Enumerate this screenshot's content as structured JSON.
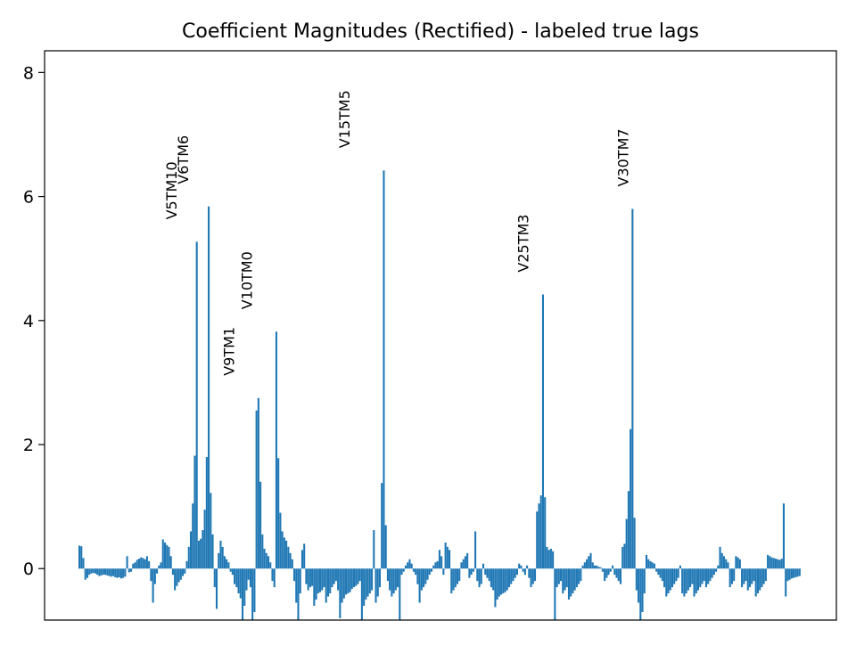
{
  "chart_data": {
    "type": "bar",
    "title": "Coefficient Magnitudes (Rectified) - labeled true lags",
    "xlabel": "",
    "ylabel": "",
    "ylim": [
      -0.83,
      8.35
    ],
    "xlim": [
      0,
      372
    ],
    "x_ticks_visible": false,
    "grid": false,
    "bar_color": "#1f77b4",
    "y_ticks": [
      {
        "value": 0,
        "label": "0"
      },
      {
        "value": 2,
        "label": "2"
      },
      {
        "value": 4,
        "label": "4"
      },
      {
        "value": 6,
        "label": "6"
      },
      {
        "value": 8,
        "label": "8"
      }
    ],
    "annotations": [
      {
        "text": "V5TM10",
        "x": 46,
        "y": 5.27
      },
      {
        "text": "V6TM6",
        "x": 52,
        "y": 5.84
      },
      {
        "text": "V9TM1",
        "x": 75,
        "y": 2.75
      },
      {
        "text": "V10TM0",
        "x": 84,
        "y": 3.82
      },
      {
        "text": "V15TM5",
        "x": 133,
        "y": 6.42
      },
      {
        "text": "V25TM3",
        "x": 223,
        "y": 4.42
      },
      {
        "text": "V30TM7",
        "x": 273,
        "y": 5.8
      }
    ],
    "values": [
      0.37,
      0.36,
      0.17,
      -0.18,
      -0.15,
      -0.1,
      -0.08,
      -0.07,
      -0.08,
      -0.1,
      -0.12,
      -0.11,
      -0.1,
      -0.1,
      -0.11,
      -0.12,
      -0.13,
      -0.12,
      -0.14,
      -0.15,
      -0.14,
      -0.16,
      -0.15,
      -0.13,
      0.2,
      -0.06,
      -0.05,
      0.08,
      0.1,
      0.14,
      0.16,
      0.18,
      0.17,
      0.15,
      0.2,
      0.12,
      -0.2,
      -0.55,
      -0.25,
      -0.08,
      0.05,
      0.1,
      0.47,
      0.42,
      0.38,
      0.35,
      0.2,
      -0.1,
      -0.35,
      -0.28,
      -0.22,
      -0.18,
      -0.12,
      -0.08,
      0.12,
      0.35,
      0.6,
      1.05,
      1.82,
      5.27,
      0.45,
      0.48,
      0.62,
      0.95,
      1.8,
      5.84,
      1.22,
      0.55,
      -0.3,
      -0.65,
      0.25,
      0.45,
      0.35,
      0.2,
      0.15,
      0.1,
      -0.05,
      -0.1,
      -0.25,
      -0.3,
      -0.4,
      -0.48,
      -0.83,
      -0.6,
      -0.35,
      -0.18,
      -0.3,
      -0.83,
      -0.7,
      2.55,
      2.75,
      1.4,
      0.55,
      0.32,
      0.25,
      0.2,
      0.1,
      -0.2,
      -0.3,
      3.82,
      1.78,
      0.9,
      0.6,
      0.5,
      0.45,
      0.35,
      0.25,
      0.15,
      -0.2,
      -0.55,
      -0.83,
      -0.4,
      0.3,
      0.4,
      -0.25,
      -0.35,
      -0.3,
      -0.28,
      -0.6,
      -0.5,
      -0.4,
      -0.38,
      -0.35,
      -0.3,
      -0.55,
      -0.45,
      -0.4,
      -0.3,
      -0.25,
      -0.2,
      -0.35,
      -0.8,
      -0.55,
      -0.48,
      -0.42,
      -0.4,
      -0.38,
      -0.33,
      -0.3,
      -0.28,
      -0.25,
      -0.2,
      -0.83,
      -0.6,
      -0.5,
      -0.45,
      -0.4,
      -0.35,
      0.62,
      -0.55,
      -0.45,
      -0.3,
      1.38,
      6.42,
      0.7,
      -0.2,
      -0.35,
      -0.45,
      -0.4,
      -0.35,
      -0.3,
      -0.83,
      -0.1,
      -0.05,
      0.05,
      0.1,
      0.15,
      0.08,
      -0.05,
      -0.1,
      -0.25,
      -0.55,
      -0.35,
      -0.3,
      -0.25,
      -0.18,
      -0.1,
      -0.05,
      0.05,
      0.1,
      0.12,
      0.3,
      0.2,
      -0.1,
      0.42,
      0.35,
      0.3,
      -0.4,
      -0.35,
      -0.3,
      -0.25,
      -0.2,
      0.1,
      0.15,
      0.2,
      0.25,
      -0.15,
      -0.1,
      -0.05,
      0.6,
      -0.2,
      -0.3,
      -0.25,
      0.08,
      -0.1,
      -0.15,
      -0.2,
      -0.3,
      -0.35,
      -0.62,
      -0.5,
      -0.45,
      -0.42,
      -0.4,
      -0.38,
      -0.35,
      -0.3,
      -0.25,
      -0.2,
      -0.15,
      -0.1,
      0.08,
      0.05,
      -0.05,
      -0.1,
      0.05,
      -0.15,
      -0.3,
      -0.25,
      -0.2,
      0.92,
      1.05,
      1.18,
      4.42,
      1.15,
      0.35,
      0.3,
      0.32,
      0.28,
      -0.83,
      -0.3,
      -0.25,
      -0.2,
      -0.4,
      -0.35,
      -0.3,
      -0.5,
      -0.45,
      -0.4,
      -0.35,
      -0.3,
      -0.25,
      -0.2,
      0.05,
      0.1,
      0.15,
      0.2,
      0.25,
      0.1,
      0.05,
      0.05,
      0.03,
      0.02,
      -0.05,
      -0.2,
      -0.15,
      -0.1,
      -0.05,
      0.05,
      -0.1,
      -0.15,
      -0.2,
      -0.25,
      0.35,
      0.4,
      0.8,
      1.25,
      2.25,
      5.8,
      0.82,
      -0.35,
      -0.55,
      -0.83,
      -0.7,
      -0.4,
      0.22,
      0.15,
      0.12,
      0.1,
      0.08,
      -0.05,
      -0.1,
      -0.15,
      -0.2,
      -0.3,
      -0.45,
      -0.4,
      -0.35,
      -0.3,
      -0.25,
      -0.2,
      -0.15,
      0.05,
      -0.4,
      -0.45,
      -0.4,
      -0.35,
      -0.3,
      -0.25,
      -0.45,
      -0.4,
      -0.35,
      -0.3,
      -0.25,
      -0.2,
      -0.3,
      -0.25,
      -0.2,
      -0.15,
      -0.1,
      -0.05,
      0.05,
      0.35,
      0.25,
      0.2,
      0.15,
      0.1,
      -0.3,
      -0.25,
      -0.2,
      0.2,
      0.18,
      0.15,
      -0.3,
      -0.25,
      -0.2,
      -0.35,
      -0.3,
      -0.25,
      -0.2,
      -0.45,
      -0.4,
      -0.35,
      -0.3,
      -0.25,
      -0.2,
      0.22,
      0.2,
      0.18,
      0.17,
      0.16,
      0.15,
      0.14,
      0.16,
      1.05,
      -0.45,
      -0.2,
      -0.18,
      -0.16,
      -0.15,
      -0.14,
      -0.13,
      -0.12
    ]
  }
}
